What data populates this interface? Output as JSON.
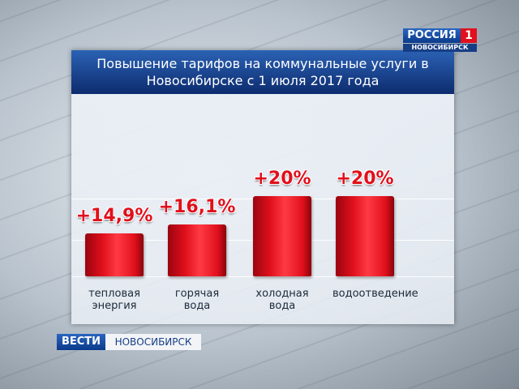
{
  "chart_data": {
    "type": "bar",
    "title": "Повышение тарифов на коммунальные услуги в Новосибирске с 1 июля 2017 года",
    "categories": [
      "тепловая энергия",
      "горячая вода",
      "холодная вода",
      "водоотведение"
    ],
    "values": [
      14.9,
      16.1,
      20,
      20
    ],
    "value_labels": [
      "+14,9%",
      "+16,1%",
      "+20%",
      "+20%"
    ],
    "color": "#e0101c",
    "ylim": [
      9,
      22
    ]
  },
  "logo": {
    "channel": "РОССИЯ",
    "number": "1",
    "region": "НОВОСИБИРСК"
  },
  "ticker": {
    "brand": "ВЕСТИ",
    "region": "НОВОСИБИРСК"
  }
}
